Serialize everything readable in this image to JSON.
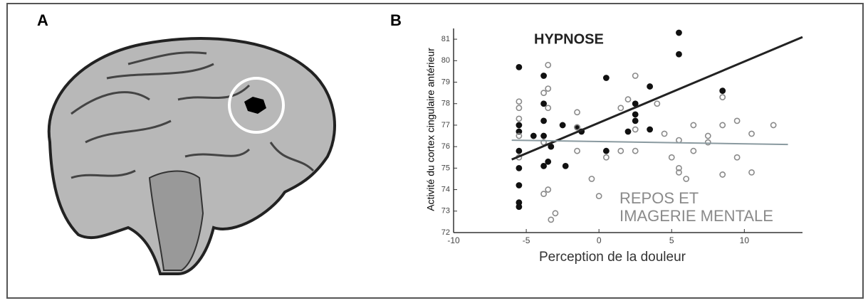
{
  "panel_labels": [
    "A",
    "B"
  ],
  "chart_data": {
    "type": "scatter",
    "ylabel": "Activité du cortex cingulaire antérieur",
    "xlabel": "Perception de la douleur",
    "annotations": [
      "HYPNOSE",
      "REPOS ET",
      "IMAGERIE MENTALE"
    ],
    "annotation_colors": [
      "#222222",
      "#8a8a8a",
      "#8a8a8a"
    ],
    "xlim": [
      -10,
      14
    ],
    "ylim": [
      72,
      81.5
    ],
    "xticks": [
      -10,
      -5,
      0,
      5,
      10
    ],
    "yticks": [
      72,
      73,
      74,
      75,
      76,
      77,
      78,
      79,
      80,
      81
    ],
    "series": [
      {
        "color": "#111111",
        "filled": true,
        "x": [
          -5.5,
          -3.8,
          -5.5,
          -5.5,
          -5.5,
          -5.5,
          -5.5,
          -5.5,
          -5.5,
          -3.8,
          -3.8,
          -3.8,
          -3.8,
          -3.5,
          -3.3,
          -2.3,
          -1.5,
          -1.2,
          0.5,
          0.5,
          2.5,
          2.5,
          2.5,
          3.5,
          3.5,
          2,
          5.5,
          5.5,
          8.5,
          -2.5,
          -4.5
        ],
        "values": [
          79.7,
          79.3,
          77,
          76.7,
          75.8,
          75,
          74.2,
          73.4,
          73.2,
          78,
          77.2,
          76.5,
          75.1,
          75.3,
          76,
          75.1,
          76.9,
          76.7,
          79.2,
          75.8,
          78,
          77.5,
          77.2,
          78.8,
          76.8,
          76.7,
          81.3,
          80.3,
          78.6,
          77,
          76.5
        ]
      },
      {
        "color": "#8a8a8a",
        "filled": false,
        "x": [
          -5.5,
          -5.5,
          -5.5,
          -5.5,
          -5.5,
          -3.8,
          -3.8,
          -3.5,
          -3.5,
          -3.5,
          -3.3,
          -3,
          -1.5,
          -1.5,
          -1.5,
          -0.5,
          0,
          0.5,
          1.5,
          2.5,
          2.5,
          2.5,
          4,
          4.5,
          5,
          5.5,
          5.5,
          5.5,
          6.5,
          6.5,
          7.5,
          7.5,
          8.5,
          8.5,
          8.5,
          9.5,
          9.5,
          10.5,
          10.5,
          12,
          2,
          -3.5,
          -3.8,
          6,
          1.5
        ],
        "values": [
          78.1,
          77.8,
          77.3,
          76.5,
          75.5,
          78.5,
          76.2,
          79.8,
          78.7,
          77.8,
          72.6,
          72.9,
          77.6,
          76.9,
          75.8,
          74.5,
          73.7,
          75.5,
          75.8,
          79.3,
          76.8,
          75.8,
          78,
          76.6,
          75.5,
          76.3,
          75,
          74.8,
          77,
          75.8,
          76.5,
          76.2,
          78.3,
          77,
          74.7,
          77.2,
          75.5,
          76.6,
          74.8,
          77,
          78.2,
          74,
          73.8,
          74.5,
          77.8
        ]
      }
    ],
    "lines": [
      {
        "color": "#222222",
        "x": [
          -6,
          14
        ],
        "values": [
          75.4,
          81.1
        ]
      },
      {
        "color": "#8a9aa0",
        "x": [
          -6,
          13
        ],
        "values": [
          76.3,
          76.1
        ]
      }
    ]
  }
}
